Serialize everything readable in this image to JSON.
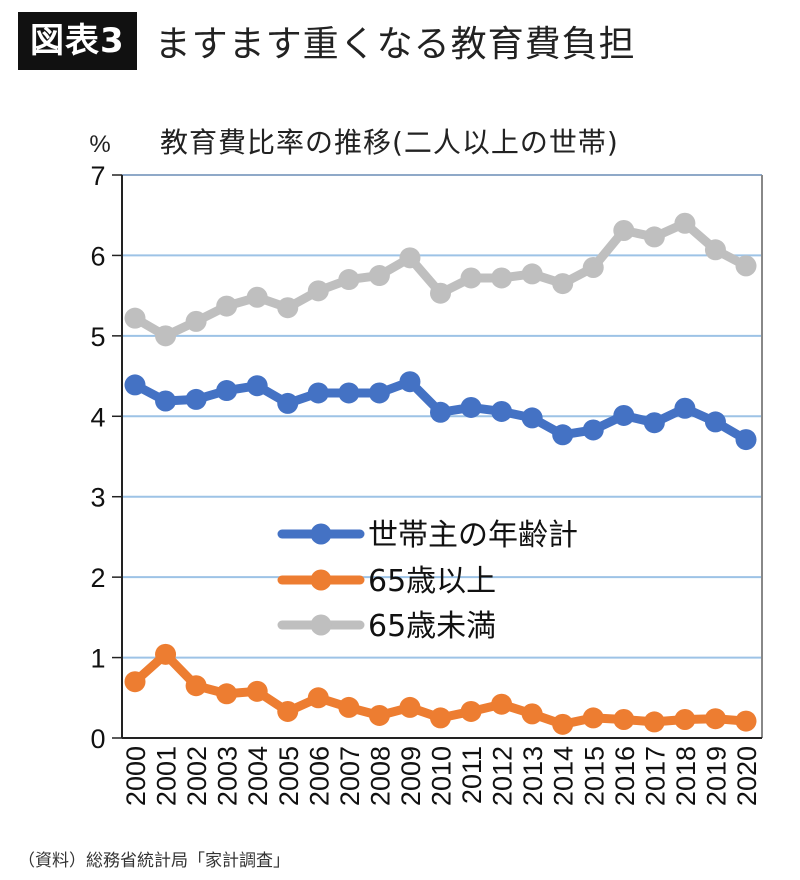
{
  "header": {
    "badge": "図表3",
    "title": "ますます重くなる教育費負担"
  },
  "footer": {
    "source": "（資料）総務省統計局「家計調査」"
  },
  "chart_data": {
    "type": "line",
    "title": "教育費比率の推移(二人以上の世帯)",
    "ylabel": "%",
    "xlabel": "",
    "ylim": [
      0,
      7
    ],
    "yticks": [
      "0",
      "1",
      "2",
      "3",
      "4",
      "5",
      "6",
      "7"
    ],
    "grid": true,
    "legend_position": "center-left",
    "x": [
      "2000",
      "2001",
      "2002",
      "2003",
      "2004",
      "2005",
      "2006",
      "2007",
      "2008",
      "2009",
      "2010",
      "2011",
      "2012",
      "2013",
      "2014",
      "2015",
      "2016",
      "2017",
      "2018",
      "2019",
      "2020"
    ],
    "series": [
      {
        "name": "世帯主の年齢計",
        "color": "#4472C4",
        "values": [
          4.39,
          4.19,
          4.21,
          4.32,
          4.38,
          4.16,
          4.29,
          4.29,
          4.29,
          4.43,
          4.05,
          4.11,
          4.06,
          3.98,
          3.77,
          3.83,
          4.01,
          3.92,
          4.1,
          3.93,
          3.71
        ]
      },
      {
        "name": "65歳以上",
        "color": "#ED7D31",
        "values": [
          0.7,
          1.04,
          0.65,
          0.55,
          0.58,
          0.33,
          0.5,
          0.38,
          0.28,
          0.38,
          0.25,
          0.33,
          0.42,
          0.3,
          0.17,
          0.25,
          0.23,
          0.2,
          0.23,
          0.24,
          0.21
        ]
      },
      {
        "name": "65歳未満",
        "color": "#BFBFBF",
        "values": [
          5.22,
          5.0,
          5.18,
          5.37,
          5.48,
          5.35,
          5.56,
          5.7,
          5.75,
          5.97,
          5.53,
          5.72,
          5.72,
          5.77,
          5.65,
          5.85,
          6.31,
          6.23,
          6.4,
          6.07,
          5.87
        ]
      }
    ],
    "gridline_color": "#9DC3E6"
  }
}
